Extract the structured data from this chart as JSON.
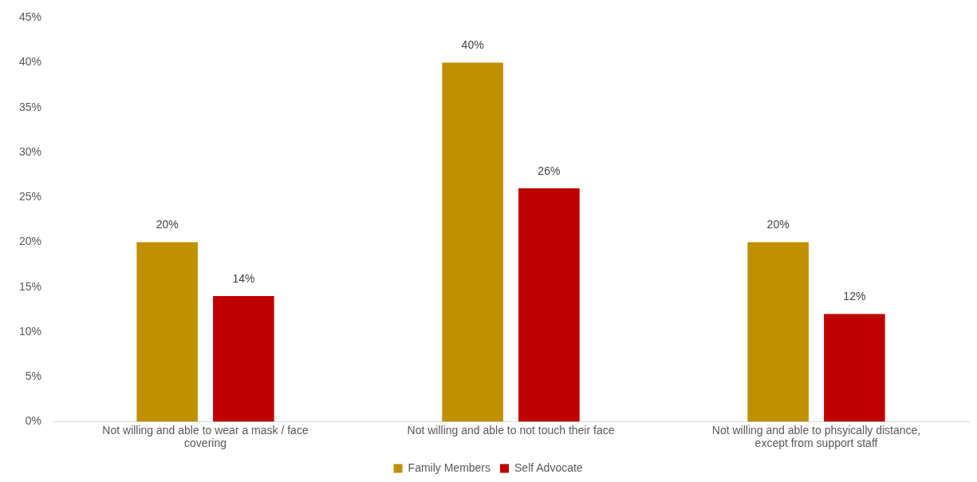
{
  "chart_data": {
    "type": "bar",
    "categories": [
      "Not willing and able to wear a mask / face covering",
      "Not willing and able to not touch their face",
      "Not willing and able to phsyically distance, except from support staff"
    ],
    "series": [
      {
        "name": "Family Members",
        "color": "#bf9000",
        "values": [
          20,
          40,
          20
        ],
        "value_labels": [
          "20%",
          "40%",
          "20%"
        ]
      },
      {
        "name": "Self Advocate",
        "color": "#c00000",
        "values": [
          14,
          26,
          12
        ],
        "value_labels": [
          "14%",
          "26%",
          "12%"
        ]
      }
    ],
    "ylim": [
      0,
      45
    ],
    "yticks": [
      {
        "value": 0,
        "label": "0%"
      },
      {
        "value": 5,
        "label": "5%"
      },
      {
        "value": 10,
        "label": "10%"
      },
      {
        "value": 15,
        "label": "15%"
      },
      {
        "value": 20,
        "label": "20%"
      },
      {
        "value": 25,
        "label": "25%"
      },
      {
        "value": 30,
        "label": "30%"
      },
      {
        "value": 35,
        "label": "35%"
      },
      {
        "value": 40,
        "label": "40%"
      },
      {
        "value": 45,
        "label": "45%"
      }
    ],
    "grid": false,
    "legend": "bottom"
  }
}
